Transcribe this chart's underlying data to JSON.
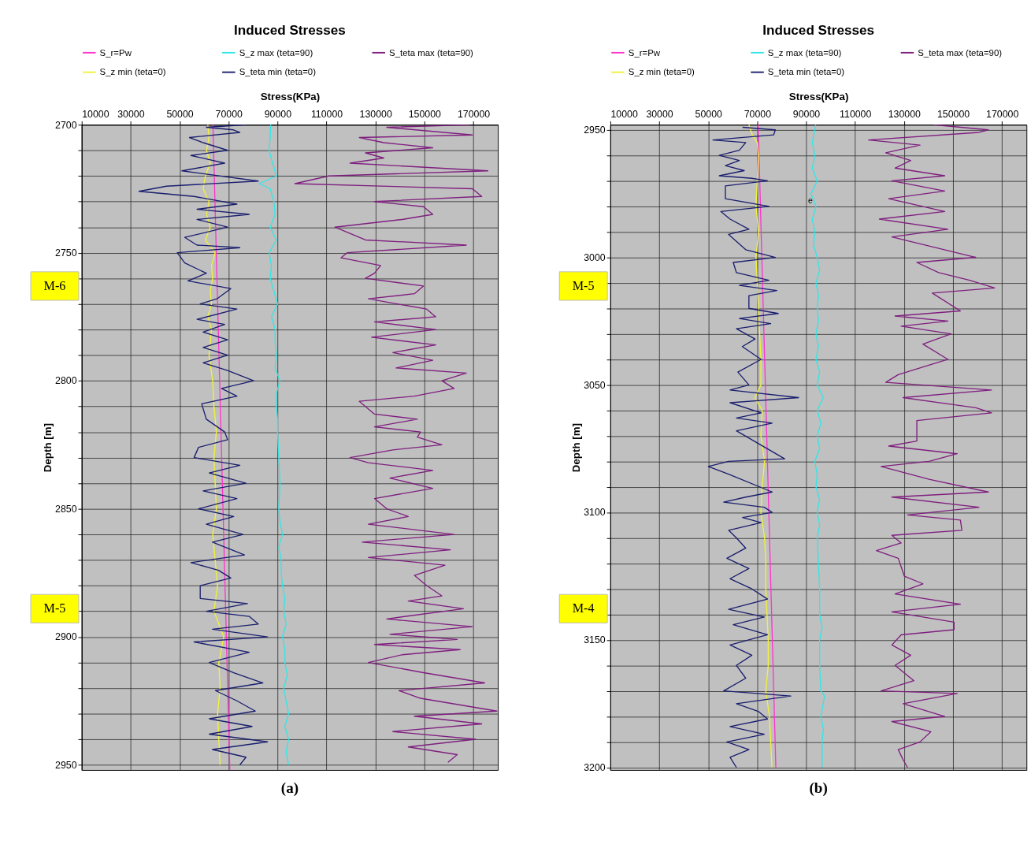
{
  "chart_data": [
    {
      "type": "line",
      "title": "Induced Stresses",
      "xlabel": "Stress(KPa)",
      "ylabel": "Depth [m]",
      "legend": "top",
      "grid": true,
      "xlim": [
        10000,
        180000
      ],
      "xticks": [
        10000,
        30000,
        50000,
        70000,
        90000,
        110000,
        130000,
        150000,
        170000
      ],
      "ylim": [
        2952,
        2700
      ],
      "yticks": [
        2700,
        {
          "value": 2710,
          "label": null
        },
        {
          "value": 2720,
          "label": null
        },
        {
          "value": 2730,
          "label": null
        },
        {
          "value": 2740,
          "label": null
        },
        2750,
        {
          "value": 2760,
          "label": null
        },
        {
          "value": 2770,
          "label": null
        },
        {
          "value": 2780,
          "label": null
        },
        {
          "value": 2790,
          "label": null
        },
        2800,
        {
          "value": 2810,
          "label": null
        },
        {
          "value": 2820,
          "label": null
        },
        {
          "value": 2830,
          "label": null
        },
        {
          "value": 2840,
          "label": null
        },
        2850,
        {
          "value": 2860,
          "label": null
        },
        {
          "value": 2870,
          "label": null
        },
        {
          "value": 2880,
          "label": null
        },
        {
          "value": 2890,
          "label": null
        },
        2900,
        {
          "value": 2910,
          "label": null
        },
        {
          "value": 2920,
          "label": null
        },
        {
          "value": 2930,
          "label": null
        },
        {
          "value": 2940,
          "label": null
        },
        2950
      ],
      "annotations": [
        "(a)",
        "M-6",
        "M-5"
      ],
      "series": [
        {
          "name": "S_r=Pw",
          "color": "#ff33cc",
          "x": [
            63600,
            70500
          ],
          "values": [
            2700,
            2952
          ]
        },
        {
          "name": "S_z max (teta=90)",
          "color": "#33e6e6",
          "x": [
            87200,
            87000,
            86500,
            88000,
            89500,
            82500,
            87000,
            88500,
            89000,
            87000,
            89500,
            86500,
            87500,
            87000,
            88500,
            90000,
            87500,
            89000,
            89000,
            89500,
            89000,
            91000,
            89500,
            89500,
            90000,
            90000,
            90500,
            91000,
            90500,
            91000,
            92000,
            90500,
            91500,
            91500,
            92000,
            93000,
            92500,
            93500,
            92000,
            93000,
            93000,
            94000,
            92500,
            93500,
            94500,
            93000,
            94500,
            93500,
            94500
          ],
          "values": [
            2700,
            2705,
            2710,
            2715,
            2720,
            2723,
            2725,
            2730,
            2735,
            2740,
            2745,
            2750,
            2755,
            2760,
            2765,
            2770,
            2775,
            2780,
            2785,
            2790,
            2795,
            2800,
            2805,
            2810,
            2815,
            2820,
            2830,
            2840,
            2850,
            2855,
            2860,
            2865,
            2870,
            2875,
            2880,
            2885,
            2890,
            2895,
            2900,
            2905,
            2910,
            2915,
            2920,
            2925,
            2930,
            2935,
            2940,
            2945,
            2950
          ]
        },
        {
          "name": "S_teta max (teta=90)",
          "color": "#7f1f7f",
          "x": [
            168400,
            134600,
            169600,
            123400,
            133400,
            153400,
            125900,
            133400,
            119600,
            175900,
            110900,
            97100,
            169600,
            173400,
            129600,
            149600,
            153400,
            140900,
            113400,
            125900,
            167100,
            118400,
            115900,
            132100,
            129600,
            125900,
            149600,
            145900,
            127100,
            150900,
            154600,
            129600,
            154600,
            128400,
            154600,
            137100,
            153400,
            138400,
            167100,
            157100,
            162100,
            145900,
            123400,
            129600,
            147100,
            129600,
            148400,
            147100,
            157100,
            137100,
            119600,
            127100,
            153400,
            135900,
            153400,
            129600,
            134600,
            143400,
            127100,
            162100,
            124600,
            160600,
            127100,
            158400,
            145900,
            150900,
            157100,
            143400,
            165900,
            134600,
            169600,
            135900,
            163400,
            129600,
            164600,
            140900,
            127100,
            149600,
            174600,
            139600,
            148400,
            179600,
            145900,
            173400,
            137100,
            170900,
            143400,
            163400,
            159600
          ],
          "values": [
            2700,
            2701,
            2704,
            2705,
            2707,
            2709,
            2711,
            2713,
            2715,
            2718,
            2720,
            2723,
            2725,
            2728,
            2730,
            2732,
            2735,
            2737,
            2740,
            2745,
            2747,
            2750,
            2752,
            2755,
            2758,
            2760,
            2763,
            2766,
            2768,
            2772,
            2775,
            2777,
            2780,
            2783,
            2786,
            2789,
            2792,
            2795,
            2797,
            2800,
            2803,
            2806,
            2808,
            2813,
            2815,
            2818,
            2820,
            2822,
            2825,
            2827,
            2830,
            2832,
            2835,
            2838,
            2842,
            2846,
            2850,
            2853,
            2856,
            2860,
            2863,
            2866,
            2869,
            2872,
            2876,
            2880,
            2884,
            2886,
            2889,
            2893,
            2896,
            2899,
            2901,
            2903,
            2905,
            2907,
            2910,
            2914,
            2918,
            2921,
            2924,
            2929,
            2931,
            2934,
            2937,
            2940,
            2943,
            2946,
            2949
          ]
        },
        {
          "name": "S_z min (teta=0)",
          "color": "#f2f23a",
          "x": [
            61500,
            62000,
            61000,
            62500,
            60500,
            59600,
            62000,
            61000,
            62500,
            60500,
            64500,
            63000,
            63500,
            62500,
            63000,
            61500,
            63000,
            62000,
            63500,
            64000,
            65000,
            64000,
            64500,
            65000,
            63500,
            64500,
            65500,
            64000,
            68000,
            66000,
            66500,
            65500,
            66000,
            66500
          ],
          "values": [
            2700,
            2705,
            2710,
            2715,
            2720,
            2725,
            2730,
            2735,
            2740,
            2745,
            2750,
            2755,
            2760,
            2765,
            2770,
            2775,
            2780,
            2790,
            2800,
            2810,
            2820,
            2830,
            2840,
            2850,
            2860,
            2870,
            2880,
            2890,
            2900,
            2910,
            2920,
            2930,
            2940,
            2950
          ]
        },
        {
          "name": "S_teta min (teta=0)",
          "color": "#1a1f6e",
          "x": [
            77100,
            60900,
            72000,
            74600,
            54000,
            59600,
            69600,
            54600,
            68400,
            50900,
            82100,
            44600,
            33400,
            55900,
            73400,
            57100,
            78400,
            57100,
            69600,
            52100,
            57100,
            74600,
            49000,
            52100,
            60900,
            53400,
            70900,
            65200,
            58400,
            73400,
            57100,
            68400,
            59600,
            69600,
            59600,
            69600,
            59600,
            69600,
            80250,
            67100,
            73400,
            59000,
            60900,
            68400,
            69600,
            57700,
            55900,
            74600,
            62100,
            77100,
            59600,
            73400,
            57700,
            72100,
            60900,
            75900,
            63400,
            76500,
            54600,
            65900,
            70900,
            58400,
            58400,
            77700,
            60900,
            78400,
            82100,
            63400,
            85900,
            55900,
            78400,
            62100,
            72100,
            84000,
            64600,
            73400,
            80900,
            62100,
            79600,
            62100,
            85900,
            63400,
            77100,
            74600
          ],
          "values": [
            2700,
            2701,
            2702,
            2703,
            2705,
            2707,
            2710,
            2712,
            2715,
            2718,
            2722,
            2724,
            2726,
            2728,
            2731,
            2733,
            2735,
            2737,
            2740,
            2744,
            2747,
            2748,
            2750,
            2754,
            2758,
            2761,
            2764,
            2768,
            2770,
            2772,
            2776,
            2778,
            2781,
            2784,
            2787,
            2790,
            2793,
            2796,
            2800,
            2803,
            2806,
            2809,
            2815,
            2820,
            2823,
            2826,
            2830,
            2833,
            2836,
            2840,
            2843,
            2846,
            2850,
            2853,
            2856,
            2860,
            2863,
            2868,
            2871,
            2874,
            2877,
            2880,
            2885,
            2887,
            2890,
            2892,
            2895,
            2897,
            2900,
            2902,
            2906,
            2910,
            2914,
            2918,
            2921,
            2925,
            2929,
            2932,
            2935,
            2938,
            2941,
            2944,
            2947,
            2950
          ]
        }
      ]
    },
    {
      "type": "line",
      "title": "Induced Stresses",
      "xlabel": "Stress(KPa)",
      "ylabel": "Depth [m]",
      "legend": "top",
      "grid": true,
      "xlim": [
        10000,
        180000
      ],
      "xticks": [
        10000,
        30000,
        50000,
        70000,
        90000,
        110000,
        130000,
        150000,
        170000
      ],
      "ylim": [
        3201,
        2948
      ],
      "yticks": [
        2950,
        {
          "value": 2960,
          "label": null
        },
        {
          "value": 2970,
          "label": null
        },
        {
          "value": 2980,
          "label": null
        },
        {
          "value": 2990,
          "label": null
        },
        3000,
        {
          "value": 3010,
          "label": null
        },
        {
          "value": 3020,
          "label": null
        },
        {
          "value": 3030,
          "label": null
        },
        {
          "value": 3040,
          "label": null
        },
        3050,
        {
          "value": 3060,
          "label": null
        },
        {
          "value": 3070,
          "label": null
        },
        {
          "value": 3080,
          "label": null
        },
        {
          "value": 3090,
          "label": null
        },
        3100,
        {
          "value": 3110,
          "label": null
        },
        {
          "value": 3120,
          "label": null
        },
        {
          "value": 3130,
          "label": null
        },
        {
          "value": 3140,
          "label": null
        },
        3150,
        {
          "value": 3160,
          "label": null
        },
        {
          "value": 3170,
          "label": null
        },
        {
          "value": 3180,
          "label": null
        },
        {
          "value": 3190,
          "label": null
        },
        3200
      ],
      "annotations": [
        "(b)",
        "M-5",
        "M-4",
        {
          "text": "e",
          "x": 91700,
          "y": 2978
        }
      ],
      "series": [
        {
          "name": "S_r=Pw",
          "color": "#ff33cc",
          "x": [
            70400,
            77600
          ],
          "values": [
            2948,
            3200
          ]
        },
        {
          "name": "S_z max (teta=90)",
          "color": "#33e6e6",
          "x": [
            93900,
            92500,
            93500,
            92500,
            94500,
            92000,
            94000,
            92500,
            93500,
            93000,
            94500,
            95500,
            94000,
            95000,
            94500,
            95000,
            94000,
            95000,
            94000,
            95500,
            94500,
            97000,
            94500,
            96000,
            94500,
            95500,
            93500,
            94500,
            94000,
            95500,
            94500,
            95500,
            94500,
            95000,
            95500,
            95500,
            96500,
            95500,
            95500,
            96000,
            97500,
            96000,
            97000,
            96500,
            96500
          ],
          "values": [
            2948,
            2955,
            2960,
            2965,
            2970,
            2975,
            2980,
            2985,
            2990,
            2995,
            3000,
            3005,
            3010,
            3015,
            3020,
            3025,
            3030,
            3035,
            3040,
            3045,
            3050,
            3055,
            3060,
            3065,
            3070,
            3075,
            3080,
            3085,
            3090,
            3095,
            3100,
            3105,
            3110,
            3120,
            3130,
            3140,
            3145,
            3150,
            3160,
            3170,
            3172,
            3180,
            3185,
            3190,
            3200
          ]
        },
        {
          "name": "S_teta max (teta=90)",
          "color": "#7f1f7f",
          "x": [
            142200,
            164400,
            160600,
            115500,
            136500,
            122500,
            132700,
            126300,
            146600,
            125000,
            146600,
            123700,
            146600,
            119900,
            147900,
            125000,
            159300,
            135200,
            144100,
            156800,
            167000,
            141500,
            153000,
            126300,
            147900,
            128800,
            149200,
            137700,
            147900,
            127600,
            122500,
            165700,
            129600,
            159300,
            165700,
            135200,
            135200,
            123700,
            151700,
            140200,
            120600,
            140200,
            164400,
            125000,
            160600,
            131400,
            153000,
            153600,
            125000,
            128800,
            118700,
            127600,
            130100,
            137700,
            126300,
            153000,
            125000,
            150400,
            150400,
            128800,
            125000,
            132700,
            126300,
            134000,
            120600,
            151700,
            129600,
            146600,
            125000,
            140900,
            136500,
            127600,
            129600,
            131400
          ],
          "values": [
            2948,
            2950,
            2951,
            2954,
            2956,
            2959,
            2962,
            2965,
            2968,
            2970,
            2974,
            2977,
            2982,
            2985,
            2989,
            2992,
            3000,
            3002,
            3006,
            3009,
            3012,
            3014,
            3021,
            3023,
            3025,
            3027,
            3030,
            3034,
            3040,
            3046,
            3049,
            3052,
            3055,
            3059,
            3061,
            3064,
            3072,
            3074,
            3077,
            3080,
            3082,
            3087,
            3092,
            3094,
            3098,
            3101,
            3103,
            3107,
            3109,
            3112,
            3115,
            3118,
            3125,
            3128,
            3132,
            3136,
            3139,
            3143,
            3146,
            3148,
            3152,
            3156,
            3160,
            3166,
            3170,
            3171,
            3175,
            3180,
            3182,
            3186,
            3190,
            3193,
            3197,
            3200
          ]
        },
        {
          "name": "S_z min (teta=0)",
          "color": "#f2f23a",
          "x": [
            66600,
            68000,
            70000,
            70500,
            70000,
            69500,
            70500,
            69500,
            70000,
            70500,
            71000,
            71500,
            71500,
            69000,
            72000,
            71500,
            73000,
            72000,
            71500,
            73000,
            73500,
            73500,
            74000,
            74500,
            74500,
            73500,
            75000,
            75500,
            76000
          ],
          "values": [
            2948,
            2952,
            2955,
            2960,
            2970,
            2980,
            2990,
            3000,
            3010,
            3020,
            3030,
            3040,
            3050,
            3055,
            3060,
            3070,
            3080,
            3090,
            3100,
            3110,
            3120,
            3130,
            3140,
            3150,
            3160,
            3170,
            3180,
            3190,
            3200
          ]
        },
        {
          "name": "S_teta min (teta=0)",
          "color": "#1a1f6e",
          "x": [
            64000,
            77400,
            76700,
            51900,
            65300,
            62700,
            54500,
            62700,
            57000,
            64700,
            54500,
            67800,
            74200,
            57000,
            57000,
            74800,
            55100,
            58900,
            66600,
            58300,
            65300,
            77400,
            60200,
            61500,
            74800,
            62700,
            78000,
            66600,
            66600,
            78600,
            62700,
            75500,
            61500,
            69100,
            63900,
            71600,
            62100,
            66600,
            58900,
            86900,
            58900,
            71600,
            61500,
            76100,
            61500,
            81200,
            58300,
            50000,
            58300,
            76100,
            65300,
            56300,
            72900,
            76100,
            64000,
            71600,
            58300,
            61500,
            65300,
            57600,
            66600,
            58900,
            67800,
            74200,
            58300,
            72900,
            60200,
            74200,
            58900,
            67800,
            61500,
            65300,
            56300,
            83700,
            61500,
            70400,
            74200,
            58900,
            72900,
            57600,
            66600,
            58900,
            61500
          ],
          "values": [
            2949,
            2950,
            2952,
            2954,
            2955,
            2958,
            2960,
            2962,
            2964,
            2966,
            2968,
            2969,
            2970,
            2972,
            2977,
            2980,
            2982,
            2985,
            2989,
            2991,
            2997,
            3000,
            3002,
            3006,
            3009,
            3011,
            3013,
            3015,
            3020,
            3022,
            3024,
            3026,
            3028,
            3032,
            3035,
            3040,
            3045,
            3050,
            3052,
            3055,
            3057,
            3061,
            3063,
            3065,
            3068,
            3079,
            3080,
            3082,
            3085,
            3092,
            3094,
            3096,
            3098,
            3100,
            3102,
            3104,
            3107,
            3110,
            3114,
            3118,
            3122,
            3126,
            3130,
            3134,
            3138,
            3141,
            3144,
            3148,
            3152,
            3156,
            3160,
            3165,
            3170,
            3172,
            3175,
            3178,
            3181,
            3184,
            3187,
            3190,
            3193,
            3196,
            3200
          ]
        }
      ]
    }
  ]
}
